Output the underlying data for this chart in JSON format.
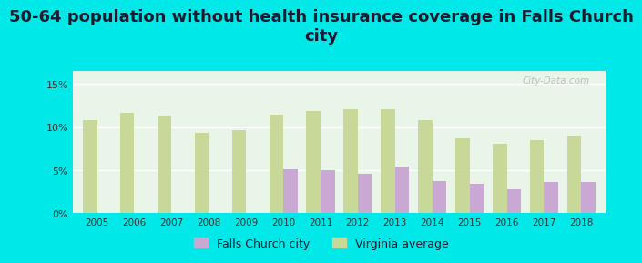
{
  "title": "50-64 population without health insurance coverage in Falls Church\ncity",
  "years": [
    2005,
    2006,
    2007,
    2008,
    2009,
    2010,
    2011,
    2012,
    2013,
    2014,
    2015,
    2016,
    2017,
    2018
  ],
  "falls_church": [
    0,
    0,
    0,
    0,
    0,
    5.1,
    5.0,
    4.6,
    5.4,
    3.7,
    3.4,
    2.8,
    3.6,
    3.6
  ],
  "virginia_avg": [
    10.8,
    11.7,
    11.3,
    9.3,
    9.7,
    11.5,
    11.9,
    12.1,
    12.1,
    10.8,
    8.7,
    8.1,
    8.5,
    9.0
  ],
  "fc_color": "#c9a8d4",
  "va_color": "#c8d898",
  "bg_color": "#00e8e8",
  "title_fontsize": 13,
  "bar_width": 0.38,
  "ylim": [
    0,
    16.5
  ],
  "yticks": [
    0,
    5,
    10,
    15
  ],
  "ytick_labels": [
    "0%",
    "5%",
    "10%",
    "15%"
  ],
  "legend_fc_label": "Falls Church city",
  "legend_va_label": "Virginia average",
  "watermark": "City-Data.com"
}
